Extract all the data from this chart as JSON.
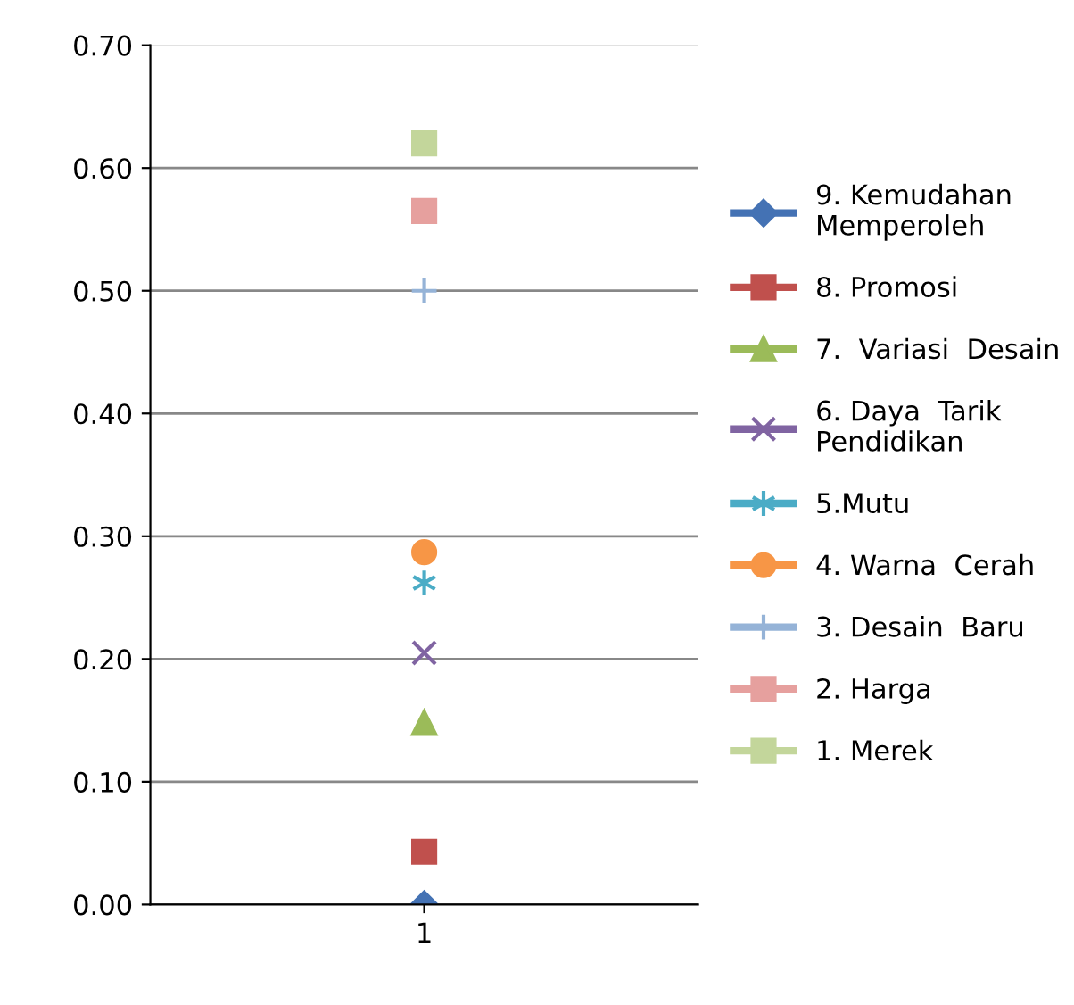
{
  "chart_data": {
    "type": "line",
    "categories": [
      "1"
    ],
    "series": [
      {
        "name": "9. Kemudahan\nMemperoleh",
        "color": "#4472b4",
        "values": [
          0.0
        ],
        "marker": "diamond"
      },
      {
        "name": "8. Promosi",
        "color": "#c0504d",
        "values": [
          0.043
        ],
        "marker": "square"
      },
      {
        "name": "7.  Variasi  Desain",
        "color": "#9bbb59",
        "values": [
          0.148
        ],
        "marker": "triangle"
      },
      {
        "name": "6. Daya  Tarik\nPendidikan",
        "color": "#8064a2",
        "values": [
          0.205
        ],
        "marker": "cross"
      },
      {
        "name": "5.Mutu",
        "color": "#4bacc6",
        "values": [
          0.262
        ],
        "marker": "cross"
      },
      {
        "name": "4. Warna  Cerah",
        "color": "#f79646",
        "values": [
          0.287
        ],
        "marker": "circle"
      },
      {
        "name": "3. Desain  Baru",
        "color": "#95b3d7",
        "values": [
          0.5
        ],
        "marker": "plus"
      },
      {
        "name": "2. Harga",
        "color": "#e6a09e",
        "values": [
          0.565
        ],
        "marker": "square"
      },
      {
        "name": "1. Merek",
        "color": "#c3d69b",
        "values": [
          0.62
        ],
        "marker": "square"
      }
    ],
    "ylim": [
      0,
      0.7
    ],
    "yticks": [
      {
        "value": 0,
        "label": "0.00"
      },
      {
        "value": 0.1,
        "label": "0.10"
      },
      {
        "value": 0.2,
        "label": "0.20"
      },
      {
        "value": 0.3,
        "label": "0.30"
      },
      {
        "value": 0.4,
        "label": "0.40"
      },
      {
        "value": 0.5,
        "label": "0.50"
      },
      {
        "value": 0.6,
        "label": "0.60"
      },
      {
        "value": 0.7,
        "label": "0.70"
      }
    ],
    "grid": "y",
    "legend": "right"
  }
}
